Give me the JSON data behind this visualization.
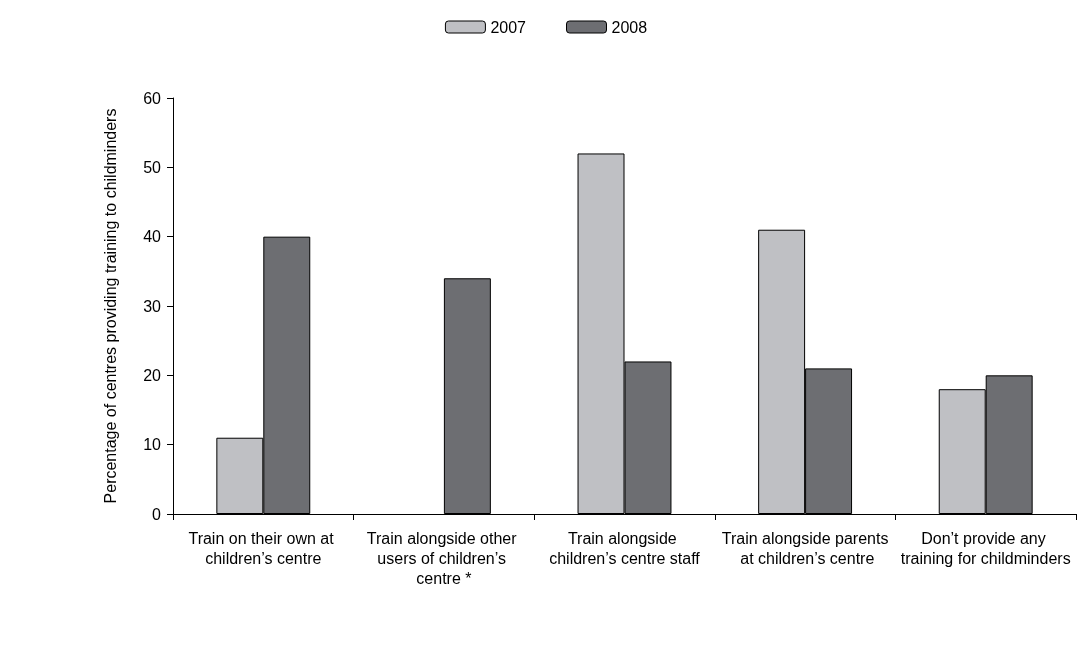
{
  "chart_data": {
    "type": "bar",
    "ylabel": "Percentage of centres providing training to childminders",
    "categories": [
      "Train on their own at children’s centre",
      "Train alongside other users of children’s centre *",
      "Train alongside children’s centre staff",
      "Train alongside parents at children’s centre",
      "Don’t provide any training for childminders"
    ],
    "series": [
      {
        "name": "2007",
        "color": "#bfc0c4",
        "values": [
          11,
          null,
          52,
          41,
          18
        ]
      },
      {
        "name": "2008",
        "color": "#6d6e72",
        "values": [
          40,
          34,
          22,
          21,
          20
        ]
      }
    ],
    "ylim": [
      0,
      60
    ],
    "yticks": [
      0,
      10,
      20,
      30,
      40,
      50,
      60
    ],
    "grid": false,
    "legend": "top"
  }
}
